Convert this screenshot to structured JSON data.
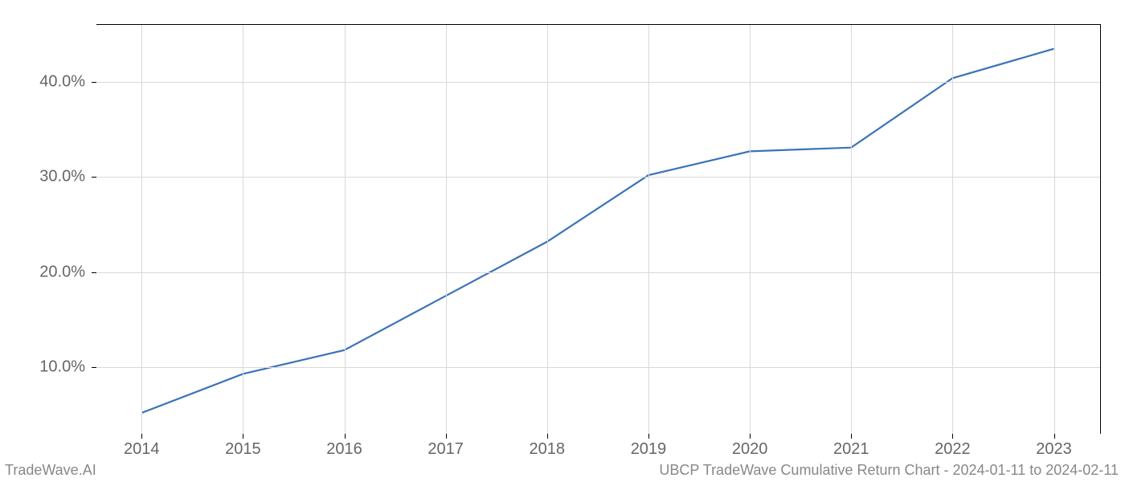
{
  "chart": {
    "type": "line",
    "x_categories": [
      "2014",
      "2015",
      "2016",
      "2017",
      "2018",
      "2019",
      "2020",
      "2021",
      "2022",
      "2023"
    ],
    "x_positions_pct": [
      4.5,
      14.6,
      24.7,
      34.8,
      44.9,
      55.0,
      65.1,
      75.2,
      85.3,
      95.4
    ],
    "y_ticks": [
      "10.0%",
      "20.0%",
      "30.0%",
      "40.0%"
    ],
    "y_tick_values": [
      10,
      20,
      30,
      40
    ],
    "ylim": [
      3.0,
      46.0
    ],
    "values": [
      5.2,
      9.3,
      11.8,
      17.5,
      23.2,
      30.2,
      32.7,
      33.1,
      40.4,
      43.5
    ],
    "line_color": "#3b73b8",
    "line_width": 2.2,
    "grid_color": "#d9d9d9",
    "background_color": "#ffffff",
    "tick_label_color": "#666666",
    "tick_fontsize": 20,
    "plot_border_color": "#000000"
  },
  "footer": {
    "left": "TradeWave.AI",
    "right": "UBCP TradeWave Cumulative Return Chart - 2024-01-11 to 2024-02-11",
    "color": "#888888",
    "fontsize": 18
  }
}
